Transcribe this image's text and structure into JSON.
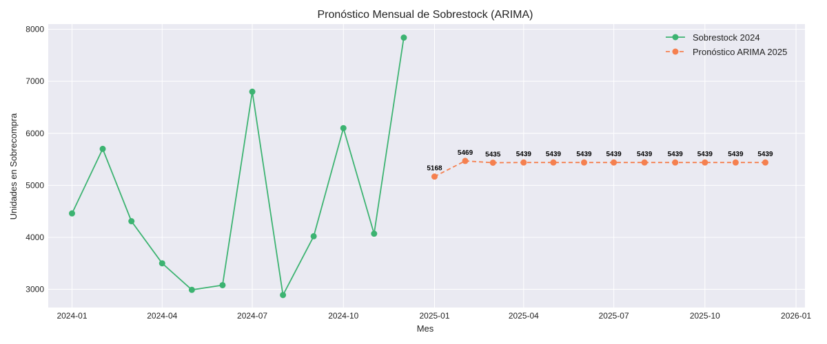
{
  "chart_data": {
    "type": "line",
    "title": "Pronóstico Mensual de Sobrestock (ARIMA)",
    "xlabel": "Mes",
    "ylabel": "Unidades en Sobrecompra",
    "xlim": [
      "2023-12-08",
      "2026-01-10"
    ],
    "ylim": [
      2650,
      8100
    ],
    "grid": true,
    "legend_position": "top-right",
    "x_ticks": [
      "2024-01",
      "2024-04",
      "2024-07",
      "2024-10",
      "2025-01",
      "2025-04",
      "2025-07",
      "2025-10",
      "2026-01"
    ],
    "y_ticks": [
      3000,
      4000,
      5000,
      6000,
      7000,
      8000
    ],
    "colors": {
      "background": "#eaeaf2",
      "series_2024": "#3cb371",
      "series_2025": "#f5804f"
    },
    "series": [
      {
        "name": "Sobrestock 2024",
        "style": "solid",
        "x": [
          "2024-01-01",
          "2024-02-01",
          "2024-03-01",
          "2024-04-01",
          "2024-05-01",
          "2024-06-01",
          "2024-07-01",
          "2024-08-01",
          "2024-09-01",
          "2024-10-01",
          "2024-11-01",
          "2024-12-01"
        ],
        "values": [
          4460,
          5700,
          4310,
          3500,
          2990,
          3080,
          6800,
          2890,
          4020,
          6100,
          4070,
          7840
        ]
      },
      {
        "name": "Pronóstico ARIMA 2025",
        "style": "dashed",
        "x": [
          "2025-01-01",
          "2025-02-01",
          "2025-03-01",
          "2025-04-01",
          "2025-05-01",
          "2025-06-01",
          "2025-07-01",
          "2025-08-01",
          "2025-09-01",
          "2025-10-01",
          "2025-11-01",
          "2025-12-01"
        ],
        "values": [
          5168,
          5469,
          5435,
          5439,
          5439,
          5439,
          5439,
          5439,
          5439,
          5439,
          5439,
          5439
        ],
        "data_labels": [
          "5168",
          "5469",
          "5435",
          "5439",
          "5439",
          "5439",
          "5439",
          "5439",
          "5439",
          "5439",
          "5439",
          "5439"
        ]
      }
    ]
  }
}
